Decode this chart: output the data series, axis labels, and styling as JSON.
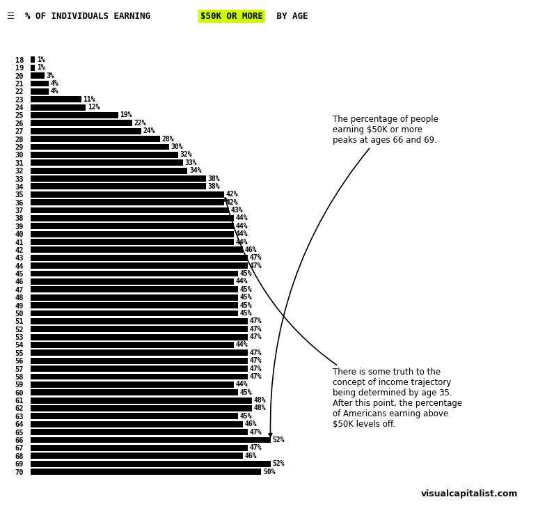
{
  "title_prefix": "% OF INDIVIDUALS EARNING ",
  "title_highlight": "$50K OR MORE",
  "title_suffix": " BY AGE",
  "highlight_color": "#ccff00",
  "background_color": "#ffffff",
  "bar_color": "#000000",
  "text_color": "#000000",
  "ages": [
    18,
    19,
    20,
    21,
    22,
    23,
    24,
    25,
    26,
    27,
    28,
    29,
    30,
    31,
    32,
    33,
    34,
    35,
    36,
    37,
    38,
    39,
    40,
    41,
    42,
    43,
    44,
    45,
    46,
    47,
    48,
    49,
    50,
    51,
    52,
    53,
    54,
    55,
    56,
    57,
    58,
    59,
    60,
    61,
    62,
    63,
    64,
    65,
    66,
    67,
    68,
    69,
    70
  ],
  "values": [
    1,
    1,
    3,
    4,
    4,
    11,
    12,
    19,
    22,
    24,
    28,
    30,
    32,
    33,
    34,
    38,
    38,
    42,
    42,
    43,
    44,
    44,
    44,
    44,
    46,
    47,
    47,
    45,
    44,
    45,
    45,
    45,
    45,
    47,
    47,
    47,
    44,
    47,
    47,
    47,
    47,
    44,
    45,
    48,
    48,
    45,
    46,
    47,
    52,
    47,
    46,
    52,
    50
  ],
  "annotation1_text": "There is some truth to the\nconcept of income trajectory\nbeing determined by age 35.\nAfter this point, the percentage\nof Americans earning above\n$50K levels off.",
  "annotation2_text": "The percentage of people\nearning $50K or more\npeaks at ages 66 and 69.",
  "watermark": "visualcapitalist.com",
  "bar_label_fontsize": 7,
  "age_label_fontsize": 7.5,
  "title_fontsize": 9,
  "annot_fontsize": 8.5
}
